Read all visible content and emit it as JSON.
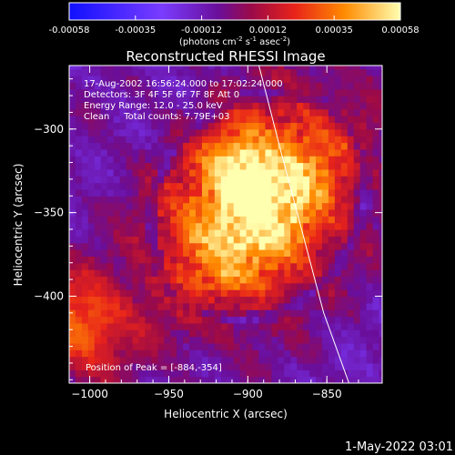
{
  "chart_data": {
    "type": "heatmap",
    "title": "Reconstructed RHESSI Image",
    "xlabel": "Heliocentric X (arcsec)",
    "ylabel": "Heliocentric Y (arcsec)",
    "xlim": [
      -1013,
      -815
    ],
    "ylim": [
      -452,
      -262
    ],
    "x_ticks": [
      -1000,
      -950,
      -900,
      -850
    ],
    "y_ticks": [
      -300,
      -350,
      -400
    ],
    "colorbar": {
      "min": -0.00058,
      "max": 0.00058,
      "ticks": [
        "-0.00058",
        "-0.00035",
        "-0.00012",
        "0.00012",
        "0.00035",
        "0.00058"
      ],
      "label_base": "(photons cm",
      "label_sup1": "-2",
      "label_mid1": " s",
      "label_sup2": "-1",
      "label_mid2": " asec",
      "label_sup3": "-2",
      "label_end": ")"
    },
    "info_lines": [
      "17-Aug-2002 16:56:24.000 to 17:02:24.000",
      "Detectors: 3F 4F 5F 6F 7F 8F Att 0",
      "Energy Range: 12.0 - 25.0 keV",
      "Clean     Total counts: 7.79E+03"
    ],
    "peak_label": "Position of Peak = [-884,-354]",
    "peak": {
      "x": -884,
      "y": -354
    },
    "limb_curve": [
      [
        -893,
        -262
      ],
      [
        -880,
        -310
      ],
      [
        -866,
        -360
      ],
      [
        -852,
        -410
      ],
      [
        -836,
        -452
      ]
    ],
    "colors": {
      "low": "#0000ff",
      "mid": "#7f00a0",
      "high": "#ffff80"
    }
  },
  "footer": {
    "timestamp": "1-May-2022 03:01"
  }
}
